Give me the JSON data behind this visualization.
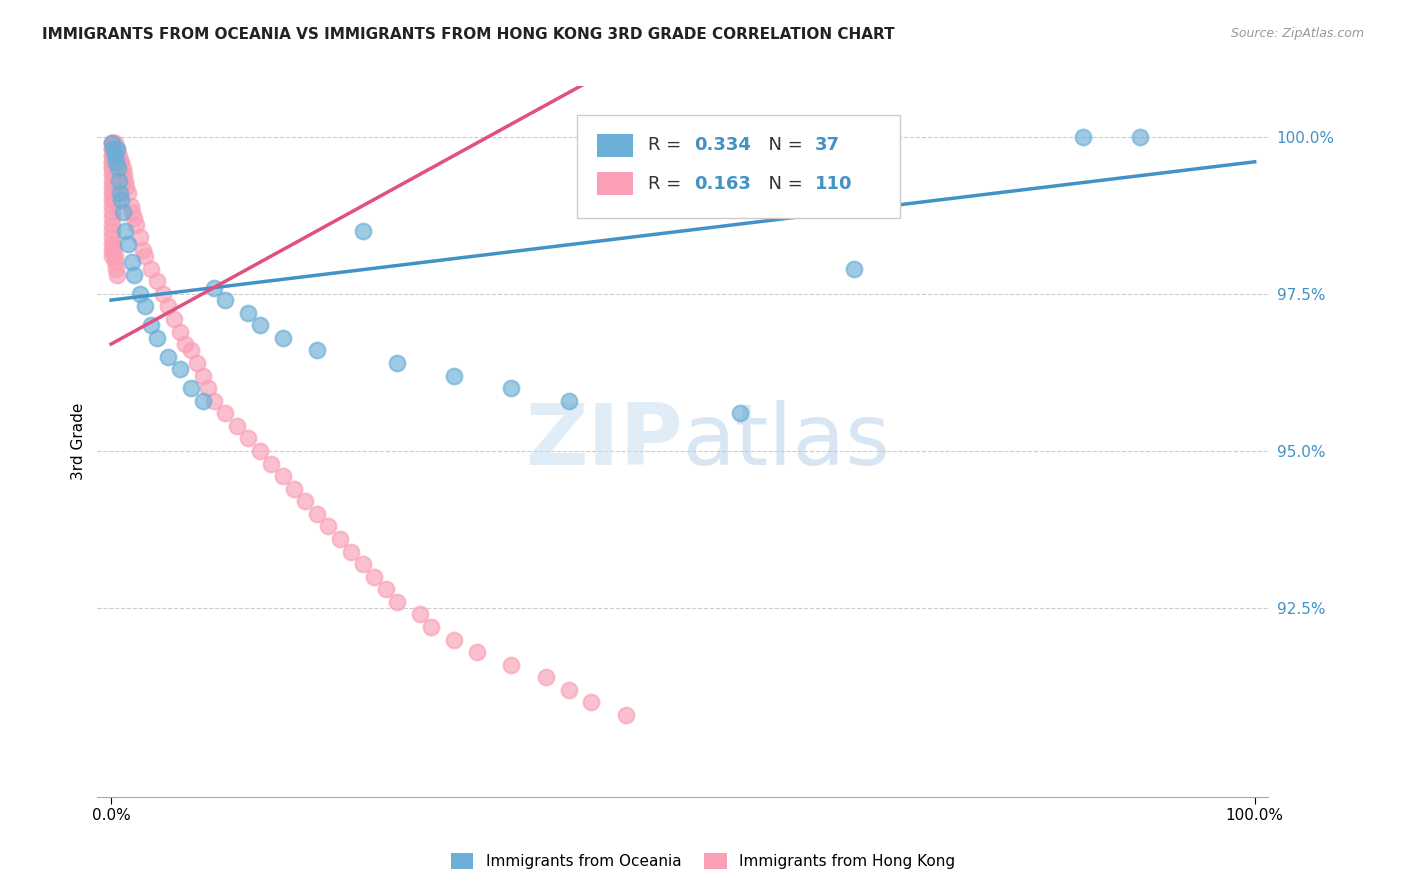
{
  "title": "IMMIGRANTS FROM OCEANIA VS IMMIGRANTS FROM HONG KONG 3RD GRADE CORRELATION CHART",
  "source": "Source: ZipAtlas.com",
  "ylabel": "3rd Grade",
  "ylabel_ticks": [
    "100.0%",
    "97.5%",
    "95.0%",
    "92.5%"
  ],
  "ylabel_tick_vals": [
    1.0,
    0.975,
    0.95,
    0.925
  ],
  "legend_r_oceania": "0.334",
  "legend_n_oceania": "37",
  "legend_r_hongkong": "0.163",
  "legend_n_hongkong": "110",
  "color_oceania": "#6baed6",
  "color_hongkong": "#fa9fb5",
  "color_oceania_line": "#4292c6",
  "color_hongkong_line": "#e05080",
  "watermark_zip": "ZIP",
  "watermark_atlas": "atlas",
  "oceania_x": [
    0.001,
    0.002,
    0.003,
    0.004,
    0.005,
    0.006,
    0.007,
    0.008,
    0.009,
    0.01,
    0.012,
    0.015,
    0.018,
    0.02,
    0.025,
    0.03,
    0.035,
    0.04,
    0.05,
    0.06,
    0.07,
    0.08,
    0.09,
    0.1,
    0.12,
    0.13,
    0.15,
    0.18,
    0.22,
    0.25,
    0.3,
    0.35,
    0.4,
    0.55,
    0.65,
    0.85,
    0.9
  ],
  "oceania_y": [
    0.999,
    0.998,
    0.997,
    0.996,
    0.998,
    0.995,
    0.993,
    0.991,
    0.99,
    0.988,
    0.985,
    0.983,
    0.98,
    0.978,
    0.975,
    0.973,
    0.97,
    0.968,
    0.965,
    0.963,
    0.96,
    0.958,
    0.976,
    0.974,
    0.972,
    0.97,
    0.968,
    0.966,
    0.985,
    0.964,
    0.962,
    0.96,
    0.958,
    0.956,
    0.979,
    1.0,
    1.0
  ],
  "hk_x": [
    0.001,
    0.001,
    0.001,
    0.001,
    0.001,
    0.001,
    0.001,
    0.001,
    0.001,
    0.001,
    0.001,
    0.001,
    0.001,
    0.001,
    0.001,
    0.001,
    0.001,
    0.001,
    0.001,
    0.001,
    0.002,
    0.002,
    0.002,
    0.002,
    0.002,
    0.002,
    0.002,
    0.002,
    0.002,
    0.002,
    0.003,
    0.003,
    0.003,
    0.003,
    0.003,
    0.004,
    0.004,
    0.004,
    0.004,
    0.005,
    0.005,
    0.005,
    0.006,
    0.006,
    0.007,
    0.007,
    0.008,
    0.008,
    0.009,
    0.009,
    0.01,
    0.01,
    0.011,
    0.012,
    0.013,
    0.015,
    0.017,
    0.018,
    0.02,
    0.022,
    0.025,
    0.028,
    0.03,
    0.035,
    0.04,
    0.045,
    0.05,
    0.055,
    0.06,
    0.065,
    0.07,
    0.075,
    0.08,
    0.085,
    0.09,
    0.1,
    0.11,
    0.12,
    0.13,
    0.14,
    0.15,
    0.16,
    0.17,
    0.18,
    0.19,
    0.2,
    0.21,
    0.22,
    0.23,
    0.24,
    0.25,
    0.27,
    0.28,
    0.3,
    0.32,
    0.35,
    0.38,
    0.4,
    0.42,
    0.45,
    0.001,
    0.001,
    0.001,
    0.001,
    0.002,
    0.002,
    0.003,
    0.003,
    0.004,
    0.005
  ],
  "hk_y": [
    0.999,
    0.999,
    0.998,
    0.998,
    0.997,
    0.997,
    0.996,
    0.996,
    0.995,
    0.995,
    0.994,
    0.993,
    0.992,
    0.991,
    0.99,
    0.989,
    0.988,
    0.987,
    0.986,
    0.985,
    0.999,
    0.998,
    0.997,
    0.996,
    0.995,
    0.994,
    0.993,
    0.992,
    0.991,
    0.99,
    0.999,
    0.997,
    0.995,
    0.993,
    0.991,
    0.998,
    0.996,
    0.994,
    0.992,
    0.998,
    0.996,
    0.994,
    0.997,
    0.995,
    0.997,
    0.995,
    0.996,
    0.994,
    0.996,
    0.994,
    0.995,
    0.993,
    0.994,
    0.993,
    0.992,
    0.991,
    0.989,
    0.988,
    0.987,
    0.986,
    0.984,
    0.982,
    0.981,
    0.979,
    0.977,
    0.975,
    0.973,
    0.971,
    0.969,
    0.967,
    0.966,
    0.964,
    0.962,
    0.96,
    0.958,
    0.956,
    0.954,
    0.952,
    0.95,
    0.948,
    0.946,
    0.944,
    0.942,
    0.94,
    0.938,
    0.936,
    0.934,
    0.932,
    0.93,
    0.928,
    0.926,
    0.924,
    0.922,
    0.92,
    0.918,
    0.916,
    0.914,
    0.912,
    0.91,
    0.908,
    0.984,
    0.983,
    0.982,
    0.981,
    0.983,
    0.982,
    0.981,
    0.98,
    0.979,
    0.978
  ]
}
